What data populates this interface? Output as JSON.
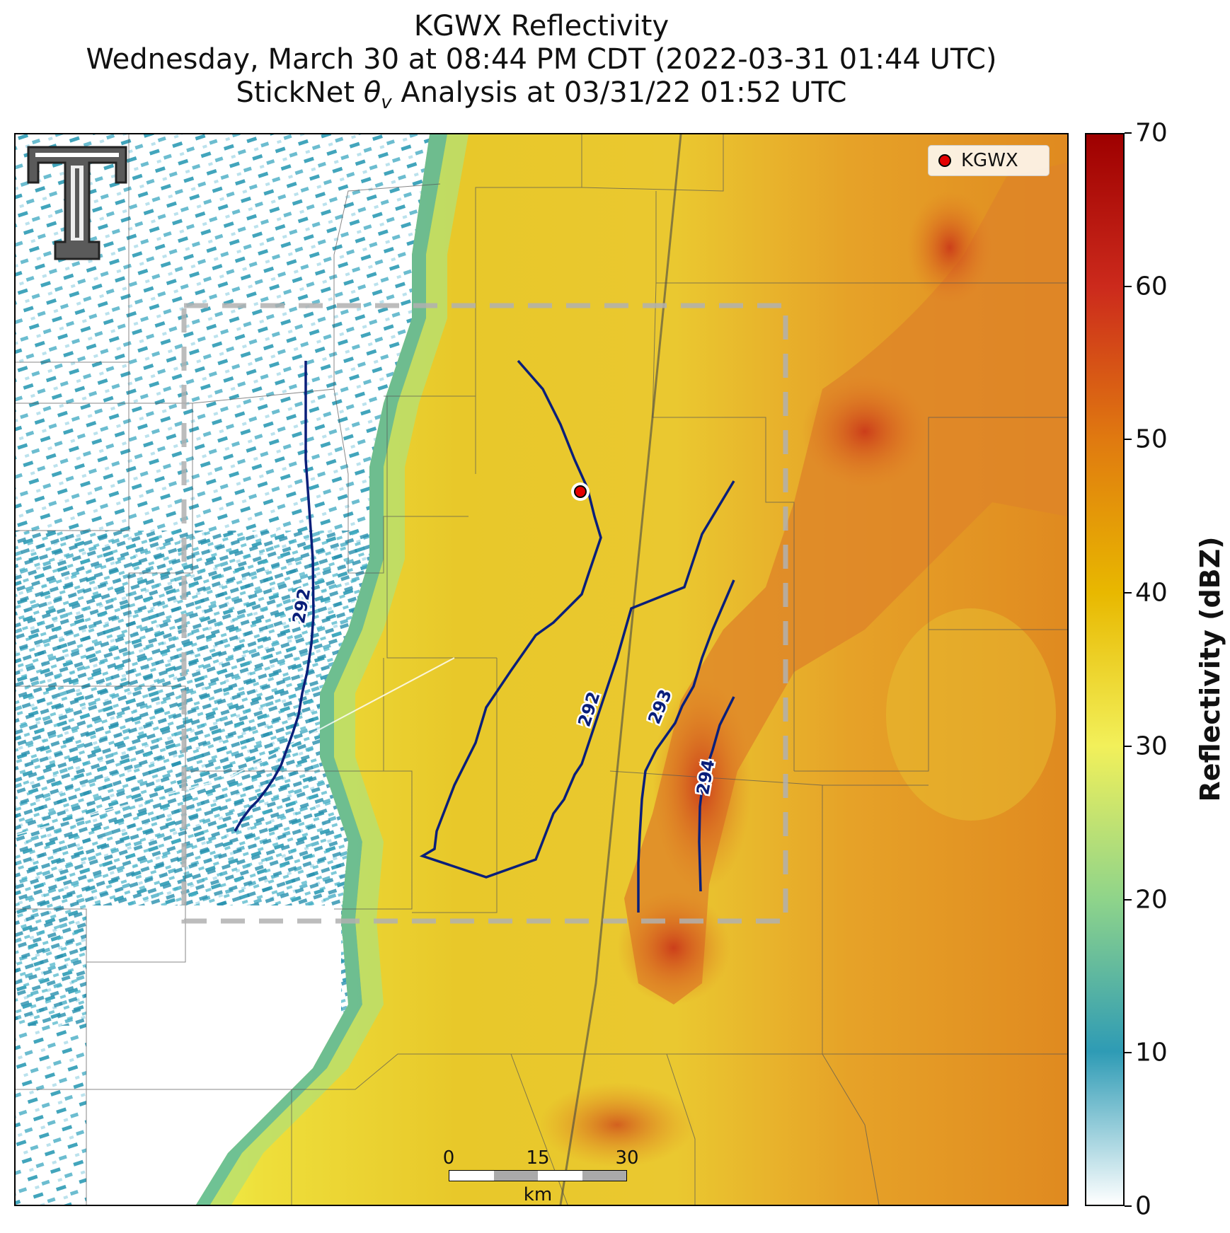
{
  "title": {
    "line1": "KGWX Reflectivity",
    "line2": "Wednesday, March 30 at 08:44 PM CDT (2022-03-31 01:44 UTC)",
    "line3_prefix": "StickNet ",
    "line3_symbol": "θ",
    "line3_subscript": "v",
    "line3_suffix": " Analysis at 03/31/22 01:52 UTC"
  },
  "legend": {
    "label": "KGWX",
    "marker_color": "#e30000"
  },
  "colorbar": {
    "title": "Reflectivity (dBZ)",
    "min": 0,
    "max": 70,
    "ticks": [
      "0",
      "10",
      "20",
      "30",
      "40",
      "50",
      "60",
      "70"
    ],
    "colors": [
      "#ffffff",
      "#2e9bb5",
      "#8fd48a",
      "#f2f05a",
      "#e8b800",
      "#e07a10",
      "#cc2a1c",
      "#9e0000"
    ]
  },
  "contour_labels": [
    "292",
    "292",
    "293",
    "294"
  ],
  "scalebar": {
    "ticks": [
      "0",
      "15",
      "30"
    ],
    "unit": "km"
  },
  "logo": {
    "text": "T"
  }
}
